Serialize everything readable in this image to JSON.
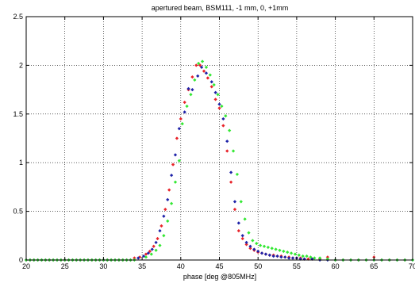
{
  "chart_data": {
    "type": "scatter",
    "title": "apertured beam, BSM111, -1 mm, 0, +1mm",
    "xlabel": "phase [deg @805MHz]",
    "ylabel": "",
    "xlim": [
      20,
      70
    ],
    "ylim": [
      0,
      2.5
    ],
    "xticks": [
      "20",
      "25",
      "30",
      "35",
      "40",
      "45",
      "50",
      "55",
      "60",
      "65",
      "70"
    ],
    "yticks": [
      "0",
      "0.5",
      "1",
      "1.5",
      "2",
      "2.5"
    ],
    "grid": true,
    "legend": "none",
    "series": [
      {
        "color": "#e8232a",
        "points": [
          [
            20,
            0
          ],
          [
            20.5,
            0
          ],
          [
            21,
            0
          ],
          [
            21.5,
            0
          ],
          [
            22,
            0
          ],
          [
            22.5,
            0
          ],
          [
            23,
            0
          ],
          [
            23.5,
            0
          ],
          [
            24,
            0
          ],
          [
            24.5,
            0
          ],
          [
            25,
            0
          ],
          [
            25.5,
            0
          ],
          [
            26,
            0
          ],
          [
            26.5,
            0
          ],
          [
            27,
            0
          ],
          [
            27.5,
            0
          ],
          [
            28,
            0
          ],
          [
            28.5,
            0
          ],
          [
            29,
            0
          ],
          [
            29.5,
            0
          ],
          [
            30,
            0
          ],
          [
            30.5,
            0
          ],
          [
            31,
            0
          ],
          [
            31.5,
            0
          ],
          [
            32,
            0
          ],
          [
            32.5,
            0
          ],
          [
            33,
            0
          ],
          [
            33.5,
            0
          ],
          [
            34,
            0.02
          ],
          [
            34.7,
            0.03
          ],
          [
            35.5,
            0.06
          ],
          [
            36,
            0.09
          ],
          [
            36.5,
            0.14
          ],
          [
            37,
            0.22
          ],
          [
            37.5,
            0.35
          ],
          [
            38,
            0.52
          ],
          [
            38.5,
            0.72
          ],
          [
            39,
            0.98
          ],
          [
            39.5,
            1.25
          ],
          [
            40,
            1.45
          ],
          [
            40.5,
            1.62
          ],
          [
            41,
            1.75
          ],
          [
            41.5,
            1.88
          ],
          [
            42,
            2.0
          ],
          [
            42.5,
            2.0
          ],
          [
            43,
            1.94
          ],
          [
            43.5,
            1.87
          ],
          [
            44,
            1.78
          ],
          [
            44.5,
            1.65
          ],
          [
            45,
            1.56
          ],
          [
            45.5,
            1.38
          ],
          [
            46,
            1.12
          ],
          [
            46.5,
            0.8
          ],
          [
            47,
            0.52
          ],
          [
            47.5,
            0.3
          ],
          [
            48,
            0.22
          ],
          [
            48.5,
            0.16
          ],
          [
            49,
            0.12
          ],
          [
            49.5,
            0.1
          ],
          [
            50,
            0.08
          ],
          [
            50.5,
            0.07
          ],
          [
            51,
            0.06
          ],
          [
            51.5,
            0.05
          ],
          [
            52,
            0.05
          ],
          [
            52.5,
            0.04
          ],
          [
            53,
            0.04
          ],
          [
            53.5,
            0.03
          ],
          [
            54,
            0.03
          ],
          [
            54.5,
            0.02
          ],
          [
            55,
            0.02
          ],
          [
            55.5,
            0.02
          ],
          [
            56,
            0.01
          ],
          [
            56.5,
            0.01
          ],
          [
            57,
            0.01
          ],
          [
            58,
            0.01
          ],
          [
            59,
            0.03
          ],
          [
            60,
            0
          ],
          [
            61,
            0
          ],
          [
            62,
            0
          ],
          [
            63,
            0
          ],
          [
            64,
            0
          ],
          [
            65,
            0.03
          ],
          [
            66,
            0
          ],
          [
            67,
            0
          ],
          [
            68,
            0
          ],
          [
            69,
            0
          ]
        ]
      },
      {
        "color": "#1e22a8",
        "points": [
          [
            20,
            0
          ],
          [
            20.5,
            0
          ],
          [
            21,
            0
          ],
          [
            21.5,
            0
          ],
          [
            22,
            0
          ],
          [
            22.5,
            0
          ],
          [
            23,
            0
          ],
          [
            23.5,
            0
          ],
          [
            24,
            0
          ],
          [
            24.5,
            0
          ],
          [
            25,
            0
          ],
          [
            25.5,
            0
          ],
          [
            26,
            0
          ],
          [
            26.5,
            0
          ],
          [
            27,
            0
          ],
          [
            27.5,
            0
          ],
          [
            28,
            0
          ],
          [
            28.5,
            0
          ],
          [
            29,
            0
          ],
          [
            29.5,
            0
          ],
          [
            30,
            0
          ],
          [
            30.5,
            0
          ],
          [
            31,
            0
          ],
          [
            31.5,
            0
          ],
          [
            32,
            0
          ],
          [
            32.5,
            0
          ],
          [
            33,
            0
          ],
          [
            33.5,
            0
          ],
          [
            34.5,
            0.02
          ],
          [
            35.2,
            0.04
          ],
          [
            35.8,
            0.07
          ],
          [
            36.3,
            0.11
          ],
          [
            36.8,
            0.18
          ],
          [
            37.3,
            0.3
          ],
          [
            37.8,
            0.45
          ],
          [
            38.3,
            0.62
          ],
          [
            38.8,
            0.87
          ],
          [
            39.3,
            1.08
          ],
          [
            39.8,
            1.35
          ],
          [
            40.5,
            1.52
          ],
          [
            41,
            1.76
          ],
          [
            41.5,
            1.75
          ],
          [
            42.2,
            1.89
          ],
          [
            42.7,
            1.98
          ],
          [
            43.3,
            1.92
          ],
          [
            44,
            1.83
          ],
          [
            44.5,
            1.72
          ],
          [
            45,
            1.6
          ],
          [
            45.5,
            1.45
          ],
          [
            46,
            1.22
          ],
          [
            46.5,
            0.9
          ],
          [
            47,
            0.6
          ],
          [
            47.5,
            0.38
          ],
          [
            48,
            0.25
          ],
          [
            48.5,
            0.18
          ],
          [
            49,
            0.14
          ],
          [
            49.5,
            0.11
          ],
          [
            50,
            0.09
          ],
          [
            50.5,
            0.07
          ],
          [
            51,
            0.06
          ],
          [
            51.5,
            0.05
          ],
          [
            52,
            0.04
          ],
          [
            52.5,
            0.04
          ],
          [
            53,
            0.03
          ],
          [
            53.5,
            0.03
          ],
          [
            54,
            0.02
          ],
          [
            54.5,
            0.02
          ],
          [
            55,
            0.02
          ],
          [
            55.5,
            0.01
          ],
          [
            56,
            0.01
          ],
          [
            57,
            0.01
          ],
          [
            58,
            0
          ],
          [
            59,
            0
          ],
          [
            60,
            0
          ],
          [
            61,
            0
          ],
          [
            62,
            0
          ],
          [
            63,
            0
          ],
          [
            64,
            0
          ],
          [
            65,
            0
          ],
          [
            66,
            0
          ],
          [
            67,
            0
          ],
          [
            68,
            0
          ],
          [
            69,
            0
          ],
          [
            70,
            0
          ]
        ]
      },
      {
        "color": "#33e833",
        "points": [
          [
            20,
            0
          ],
          [
            20.5,
            0
          ],
          [
            21,
            0
          ],
          [
            21.5,
            0
          ],
          [
            22,
            0
          ],
          [
            22.5,
            0
          ],
          [
            23,
            0
          ],
          [
            23.5,
            0
          ],
          [
            24,
            0
          ],
          [
            24.5,
            0
          ],
          [
            25,
            0
          ],
          [
            25.5,
            0
          ],
          [
            26,
            0
          ],
          [
            26.5,
            0
          ],
          [
            27,
            0
          ],
          [
            27.5,
            0
          ],
          [
            28,
            0
          ],
          [
            28.5,
            0
          ],
          [
            29,
            0
          ],
          [
            29.5,
            0
          ],
          [
            30,
            0
          ],
          [
            30.5,
            0
          ],
          [
            31,
            0
          ],
          [
            31.5,
            0
          ],
          [
            32,
            0
          ],
          [
            32.5,
            0
          ],
          [
            33,
            0
          ],
          [
            33.5,
            0
          ],
          [
            34,
            0
          ],
          [
            35.5,
            0.03
          ],
          [
            36.2,
            0.06
          ],
          [
            36.8,
            0.1
          ],
          [
            37.3,
            0.15
          ],
          [
            37.8,
            0.25
          ],
          [
            38.3,
            0.4
          ],
          [
            38.8,
            0.58
          ],
          [
            39.3,
            0.8
          ],
          [
            39.8,
            1.02
          ],
          [
            40.2,
            1.4
          ],
          [
            40.8,
            1.58
          ],
          [
            41.3,
            1.7
          ],
          [
            41.8,
            1.85
          ],
          [
            42.3,
            2.02
          ],
          [
            42.8,
            2.04
          ],
          [
            43.3,
            1.98
          ],
          [
            43.8,
            1.9
          ],
          [
            44.3,
            1.8
          ],
          [
            44.8,
            1.7
          ],
          [
            45.3,
            1.58
          ],
          [
            45.8,
            1.48
          ],
          [
            46.3,
            1.33
          ],
          [
            46.8,
            1.12
          ],
          [
            47.3,
            0.88
          ],
          [
            47.8,
            0.6
          ],
          [
            48.3,
            0.42
          ],
          [
            48.8,
            0.28
          ],
          [
            49.3,
            0.2
          ],
          [
            49.8,
            0.17
          ],
          [
            50.3,
            0.15
          ],
          [
            50.8,
            0.14
          ],
          [
            51.3,
            0.13
          ],
          [
            51.8,
            0.12
          ],
          [
            52.3,
            0.11
          ],
          [
            52.8,
            0.1
          ],
          [
            53.3,
            0.09
          ],
          [
            53.8,
            0.08
          ],
          [
            54.3,
            0.07
          ],
          [
            54.8,
            0.06
          ],
          [
            55.3,
            0.05
          ],
          [
            55.8,
            0.04
          ],
          [
            56.3,
            0.04
          ],
          [
            56.8,
            0.03
          ],
          [
            57.3,
            0.02
          ],
          [
            58,
            0.02
          ],
          [
            59,
            0.01
          ],
          [
            60,
            0
          ],
          [
            61,
            0
          ],
          [
            62,
            0
          ],
          [
            63,
            0
          ],
          [
            64,
            0
          ],
          [
            65,
            0
          ],
          [
            66,
            0
          ],
          [
            67,
            0
          ],
          [
            68,
            0
          ],
          [
            69,
            0
          ],
          [
            70,
            0
          ]
        ]
      }
    ]
  }
}
